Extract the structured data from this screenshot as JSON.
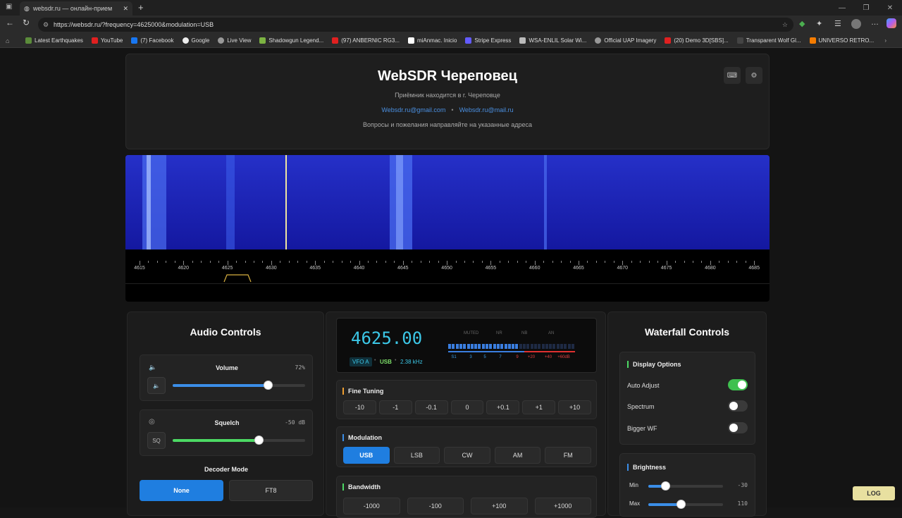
{
  "browser": {
    "tab_title": "websdr.ru — онлайн-прием",
    "url": "https://websdr.ru/?frequency=4625000&modulation=USB",
    "bookmarks": [
      "Latest Earthquakes",
      "YouTube",
      "(7) Facebook",
      "Google",
      "Live View",
      "Shadowgun Legend...",
      "(97) ANBERNIC RG3...",
      "miAnmac. Inicio",
      "Stripe Express",
      "WSA-ENLIL Solar Wi...",
      "Official UAP Imagery",
      "(20) Demo 3D[SBS]...",
      "Transparent Wolf Gl...",
      "UNIVERSO RETRO..."
    ]
  },
  "header": {
    "title": "WebSDR Череповец",
    "subtitle": "Приёмник находится в г. Череповце",
    "email1": "Websdr.ru@gmail.com",
    "email2": "Websdr.ru@mail.ru",
    "note": "Вопросы и пожелания направляйте на указанные адреса"
  },
  "scale_labels": [
    "4615",
    "4620",
    "4625",
    "4630",
    "4635",
    "4640",
    "4645",
    "4650",
    "4655",
    "4660",
    "4665",
    "4670",
    "4675",
    "4680",
    "4685"
  ],
  "audio": {
    "title": "Audio Controls",
    "volume_label": "Volume",
    "volume_value": "72%",
    "volume_level": 0.72,
    "squelch_label": "Squelch",
    "squelch_value": "-50 dB",
    "squelch_btn": "SQ",
    "squelch_level": 0.65,
    "decoder_label": "Decoder Mode",
    "decoder_none": "None",
    "decoder_ft8": "FT8"
  },
  "radio": {
    "frequency": "4625.00",
    "vfo": "VFO A",
    "mode": "USB",
    "bw": "2.38 kHz",
    "flags": [
      "MUTED",
      "NR",
      "NB",
      "AN"
    ],
    "meter_scale": [
      "S1",
      "3",
      "5",
      "7",
      "9",
      "+20",
      "+40",
      "+60dB"
    ],
    "fine_label": "Fine Tuning",
    "fine": [
      "-10",
      "-1",
      "-0.1",
      "0",
      "+0.1",
      "+1",
      "+10"
    ],
    "mod_label": "Modulation",
    "modes": [
      "USB",
      "LSB",
      "CW",
      "AM",
      "FM"
    ],
    "bw_label": "Bandwidth",
    "bw_buttons": [
      "-1000",
      "-100",
      "+100",
      "+1000"
    ]
  },
  "waterfall": {
    "title": "Waterfall Controls",
    "display_label": "Display Options",
    "auto": "Auto Adjust",
    "spectrum": "Spectrum",
    "bigger": "Bigger WF",
    "brightness_label": "Brightness",
    "min_label": "Min",
    "min_value": "-30",
    "max_label": "Max",
    "max_value": "110"
  },
  "logo": "LOG"
}
